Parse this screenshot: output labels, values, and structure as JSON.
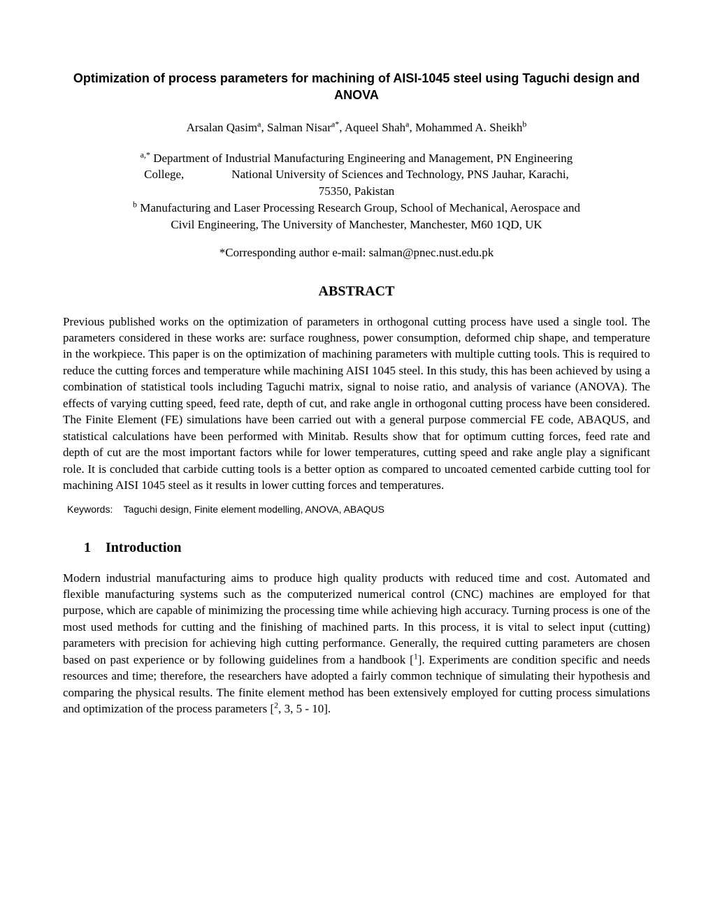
{
  "title": "Optimization of process parameters for machining of AISI-1045 steel using Taguchi design and ANOVA",
  "authors": {
    "a1_name": "Arsalan Qasim",
    "a1_sup": "a",
    "a2_name": "Salman Nisar",
    "a2_sup": "a*",
    "a3_name": "Aqueel Shah",
    "a3_sup": "a",
    "a4_name": "Mohammed A. Sheikh",
    "a4_sup": "b"
  },
  "affiliations": {
    "aff1_sup": "a,*",
    "aff1_text_1": "Department of Industrial Manufacturing Engineering and Management, PN Engineering",
    "aff1_text_2": "College,                National University of Sciences and Technology, PNS Jauhar, Karachi,",
    "aff1_text_3": "75350, Pakistan",
    "aff2_sup": "b",
    "aff2_text_1": "Manufacturing and Laser Processing Research Group, School of Mechanical, Aerospace and",
    "aff2_text_2": "Civil Engineering, The University of Manchester, Manchester, M60 1QD, UK"
  },
  "corresponding": "*Corresponding author e-mail: salman@pnec.nust.edu.pk",
  "abstract_heading": "ABSTRACT",
  "abstract_body": "Previous published works on the optimization of parameters in orthogonal cutting process have used a single tool. The parameters considered in these works are: surface roughness, power consumption, deformed chip shape, and temperature in the workpiece. This paper is on the optimization of machining parameters with multiple cutting tools. This is required to reduce the cutting forces and temperature while machining AISI 1045 steel. In this study, this has been achieved by using a combination of statistical tools including Taguchi matrix, signal to noise ratio, and analysis of variance (ANOVA). The effects of varying cutting speed, feed rate, depth of cut, and rake angle in orthogonal cutting process have been considered. The Finite Element (FE) simulations have been carried out with a general purpose commercial FE code, ABAQUS, and statistical calculations have been performed with Minitab. Results show that for optimum cutting forces, feed rate and depth of cut are the most important factors while for lower temperatures, cutting speed and rake angle play a significant role. It is concluded that carbide cutting tools is a better option as compared to uncoated cemented carbide cutting tool for machining AISI 1045 steel as it results in lower cutting forces and temperatures.",
  "keywords_label": "Keywords:",
  "keywords_text": "Taguchi design, Finite element modelling, ANOVA, ABAQUS",
  "section1": {
    "num": "1",
    "title": "Introduction"
  },
  "intro_part1": "Modern industrial manufacturing aims to produce high quality products with reduced time and cost. Automated and flexible manufacturing systems such as the computerized numerical control (CNC) machines are employed for that purpose, which are capable of minimizing the processing time while achieving high accuracy. Turning process is one of the most used methods for cutting and the finishing of machined parts. In this process, it is vital to select input (cutting) parameters with precision for achieving high cutting performance. Generally, the required cutting parameters are chosen based on past experience or by following guidelines from a handbook [",
  "intro_ref1": "1",
  "intro_part2": "]. Experiments are condition specific and needs resources and time; therefore, the researchers have adopted a fairly common technique of simulating their hypothesis and comparing the physical results. The finite element method has been extensively employed for cutting process simulations and optimization of the process parameters [",
  "intro_ref2": "2",
  "intro_part3": ", 3, 5 - 10]."
}
